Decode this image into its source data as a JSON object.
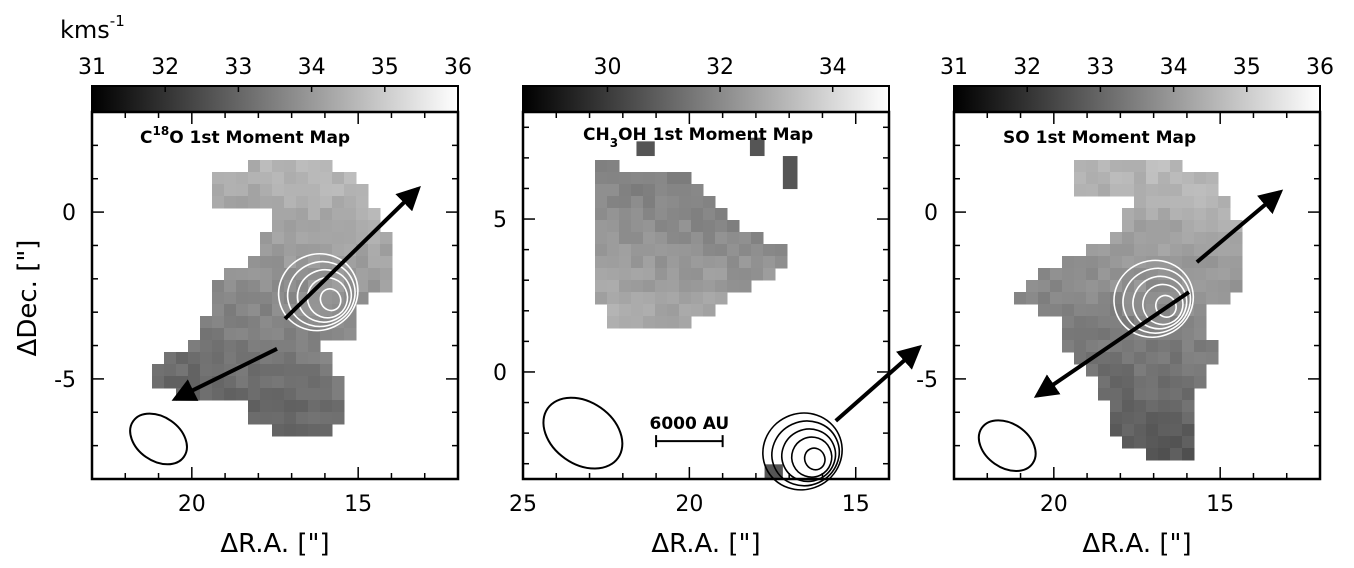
{
  "figure": {
    "unit_label": "kms",
    "unit_exponent": "-1",
    "xlabel": "ΔR.A. [\"]",
    "ylabel": "ΔDec. [\"]"
  },
  "chart_data": [
    {
      "type": "heatmap",
      "title": "C18O 1st Moment Map",
      "title_parts": [
        "C",
        "18",
        "O 1st Moment Map"
      ],
      "colorbar": {
        "range": [
          31,
          36
        ],
        "ticks": [
          31,
          32,
          33,
          34,
          35,
          36
        ]
      },
      "x_ticks": [
        20,
        15
      ],
      "y_ticks": [
        0,
        -5
      ],
      "xlim": [
        23,
        12
      ],
      "ylim": [
        -8,
        3
      ],
      "outflow_arrow": {
        "from": [
          17.2,
          -3.2
        ],
        "to": [
          13.2,
          0.7
        ],
        "to2": [
          20.5,
          -5.6
        ]
      },
      "beam": {
        "x": 21.0,
        "y": -6.8
      },
      "contour_color": "#ffffff",
      "contour_center": [
        16.2,
        -2.4
      ]
    },
    {
      "type": "heatmap",
      "title": "CH3OH 1st Moment Map",
      "title_parts": [
        "CH",
        "3",
        "OH 1st Moment Map"
      ],
      "colorbar": {
        "range": [
          28.5,
          35
        ],
        "ticks": [
          30,
          32,
          34
        ]
      },
      "x_ticks": [
        25,
        20,
        15
      ],
      "y_ticks": [
        5,
        0
      ],
      "xlim": [
        25,
        14
      ],
      "ylim": [
        -3.5,
        8.5
      ],
      "outflow_arrow": {
        "from": [
          15.6,
          -1.6
        ],
        "to": [
          13.1,
          0.8
        ]
      },
      "beam": {
        "x": 23.2,
        "y": -2.0
      },
      "scale_bar": {
        "label": "6000 AU",
        "from": 21.0,
        "to": 19.0,
        "y": -2.0
      },
      "contour_color": "#000000",
      "contour_center": [
        16.6,
        -2.6
      ]
    },
    {
      "type": "heatmap",
      "title": "SO 1st Moment Map",
      "title_parts": [
        "SO 1st Moment Map",
        "",
        ""
      ],
      "colorbar": {
        "range": [
          31,
          36
        ],
        "ticks": [
          31,
          32,
          33,
          34,
          35,
          36
        ]
      },
      "x_ticks": [
        20,
        15
      ],
      "y_ticks": [
        0,
        -5
      ],
      "xlim": [
        23,
        12
      ],
      "ylim": [
        -8,
        3
      ],
      "outflow_arrow": {
        "from": [
          15.7,
          -1.5
        ],
        "to": [
          13.2,
          0.6
        ],
        "to2": [
          20.5,
          -5.5
        ]
      },
      "beam": {
        "x": 21.4,
        "y": -7.0
      },
      "contour_color": "#ffffff",
      "contour_center": [
        17.0,
        -2.6
      ]
    }
  ]
}
